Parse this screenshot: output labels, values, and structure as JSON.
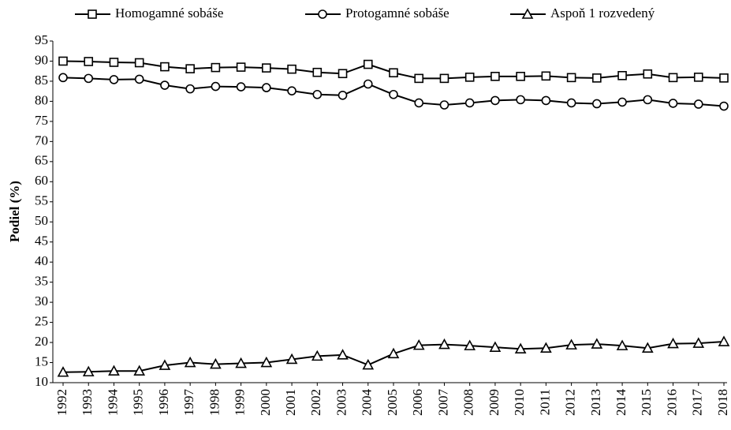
{
  "chart_data": {
    "type": "line",
    "y_label": "Podiel (%)",
    "categories": [
      "1992",
      "1993",
      "1994",
      "1995",
      "1996",
      "1997",
      "1998",
      "1999",
      "2000",
      "2001",
      "2002",
      "2003",
      "2004",
      "2005",
      "2006",
      "2007",
      "2008",
      "2009",
      "2010",
      "2011",
      "2012",
      "2013",
      "2014",
      "2015",
      "2016",
      "2017",
      "2018"
    ],
    "series": [
      {
        "name": "Homogamné sobáše",
        "color": "#000000",
        "marker": "square",
        "values": [
          90,
          89.9,
          89.7,
          89.6,
          88.6,
          88.1,
          88.4,
          88.5,
          88.3,
          88.0,
          87.2,
          86.9,
          89.2,
          87.1,
          85.7,
          85.7,
          86.0,
          86.2,
          86.2,
          86.3,
          85.9,
          85.8,
          86.4,
          86.8,
          85.9,
          86.0,
          85.8
        ]
      },
      {
        "name": "Protogamné sobáše",
        "color": "#000000",
        "marker": "circle",
        "values": [
          85.9,
          85.7,
          85.4,
          85.5,
          84.0,
          83.1,
          83.7,
          83.6,
          83.4,
          82.6,
          81.7,
          81.5,
          84.3,
          81.7,
          79.6,
          79.1,
          79.6,
          80.2,
          80.4,
          80.2,
          79.6,
          79.4,
          79.8,
          80.4,
          79.5,
          79.3,
          78.8
        ]
      },
      {
        "name": "Aspoň 1 rozvedený",
        "color": "#000000",
        "marker": "triangle",
        "values": [
          12.6,
          12.7,
          12.9,
          12.9,
          14.3,
          15.0,
          14.6,
          14.8,
          15.0,
          15.8,
          16.6,
          16.9,
          14.4,
          17.2,
          19.3,
          19.5,
          19.2,
          18.8,
          18.4,
          18.6,
          19.4,
          19.6,
          19.2,
          18.6,
          19.7,
          19.8,
          20.2
        ]
      }
    ],
    "ylim": [
      10,
      95
    ],
    "yticks": [
      10,
      15,
      20,
      25,
      30,
      35,
      40,
      45,
      50,
      55,
      60,
      65,
      70,
      75,
      80,
      85,
      90,
      95
    ],
    "grid": false,
    "legend": "top"
  }
}
